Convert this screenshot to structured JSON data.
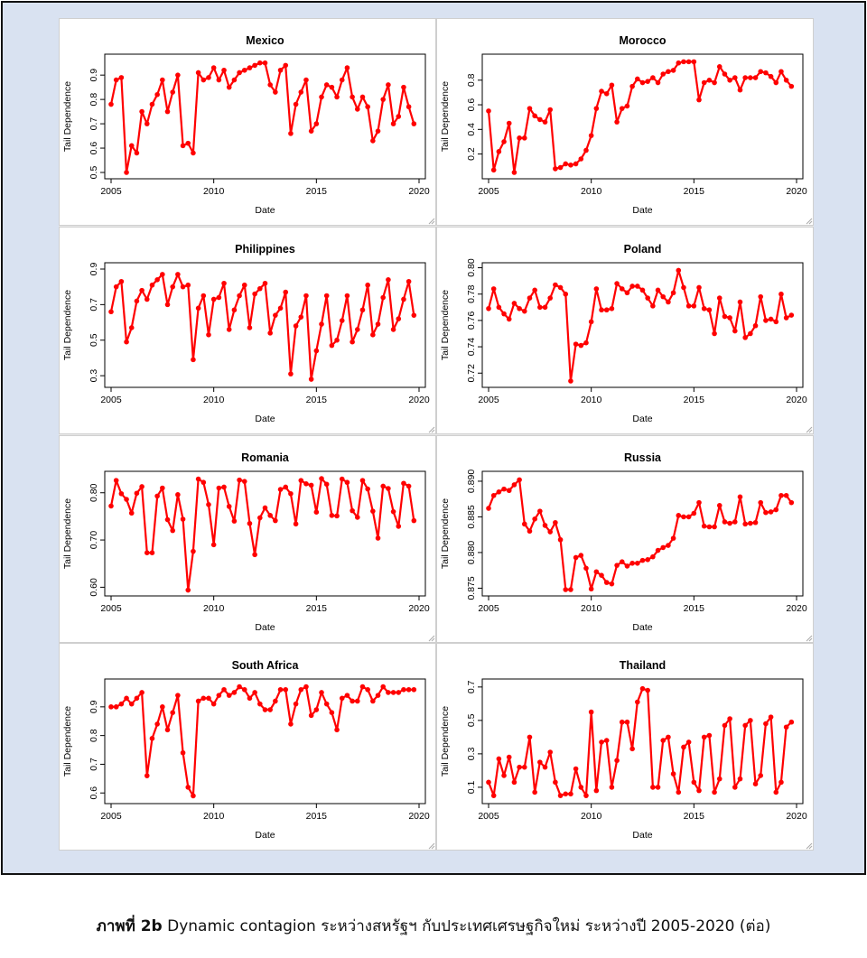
{
  "caption": {
    "label": "ภาพที่ 2b",
    "text": "Dynamic contagion ระหว่างสหรัฐฯ กับประเทศเศรษฐกิจใหม่ ระหว่างปี 2005-2020 (ต่อ)"
  },
  "colors": {
    "series": "#ff0000",
    "axis": "#000000",
    "background": "#d9e2f1"
  },
  "chart_data": [
    {
      "type": "line",
      "title": "Mexico",
      "xlabel": "Date",
      "ylabel": "Tail Dependence",
      "xlim": [
        2005,
        2020
      ],
      "ylim": [
        0.5,
        0.96
      ],
      "xticks": [
        "2005",
        "2010",
        "2015",
        "2020"
      ],
      "yticks": [
        "0.5",
        "0.6",
        "0.7",
        "0.8",
        "0.9"
      ],
      "x": [
        2005.0,
        2005.25,
        2005.5,
        2005.75,
        2006.0,
        2006.25,
        2006.5,
        2006.75,
        2007.0,
        2007.25,
        2007.5,
        2007.75,
        2008.0,
        2008.25,
        2008.5,
        2008.75,
        2009.0,
        2009.25,
        2009.5,
        2009.75,
        2010.0,
        2010.25,
        2010.5,
        2010.75,
        2011.0,
        2011.25,
        2011.5,
        2011.75,
        2012.0,
        2012.25,
        2012.5,
        2012.75,
        2013.0,
        2013.25,
        2013.5,
        2013.75,
        2014.0,
        2014.25,
        2014.5,
        2014.75,
        2015.0,
        2015.25,
        2015.5,
        2015.75,
        2016.0,
        2016.25,
        2016.5,
        2016.75,
        2017.0,
        2017.25,
        2017.5,
        2017.75,
        2018.0,
        2018.25,
        2018.5,
        2018.75,
        2019.0,
        2019.25,
        2019.5,
        2019.75
      ],
      "y": [
        0.78,
        0.88,
        0.89,
        0.5,
        0.61,
        0.58,
        0.75,
        0.7,
        0.78,
        0.82,
        0.88,
        0.75,
        0.83,
        0.9,
        0.61,
        0.62,
        0.58,
        0.91,
        0.88,
        0.89,
        0.93,
        0.88,
        0.92,
        0.85,
        0.88,
        0.91,
        0.92,
        0.93,
        0.94,
        0.95,
        0.95,
        0.86,
        0.83,
        0.92,
        0.94,
        0.66,
        0.78,
        0.83,
        0.88,
        0.67,
        0.7,
        0.81,
        0.86,
        0.85,
        0.81,
        0.88,
        0.93,
        0.81,
        0.76,
        0.81,
        0.77,
        0.63,
        0.67,
        0.8,
        0.86,
        0.7,
        0.73,
        0.85,
        0.77,
        0.7
      ]
    },
    {
      "type": "line",
      "title": "Morocco",
      "xlabel": "Date",
      "ylabel": "Tail Dependence",
      "xlim": [
        2005,
        2020
      ],
      "ylim": [
        0.05,
        0.96
      ],
      "xticks": [
        "2005",
        "2010",
        "2015",
        "2020"
      ],
      "yticks": [
        "0.2",
        "0.4",
        "0.6",
        "0.8"
      ],
      "x": [
        2005.0,
        2005.25,
        2005.5,
        2005.75,
        2006.0,
        2006.25,
        2006.5,
        2006.75,
        2007.0,
        2007.25,
        2007.5,
        2007.75,
        2008.0,
        2008.25,
        2008.5,
        2008.75,
        2009.0,
        2009.25,
        2009.5,
        2009.75,
        2010.0,
        2010.25,
        2010.5,
        2010.75,
        2011.0,
        2011.25,
        2011.5,
        2011.75,
        2012.0,
        2012.25,
        2012.5,
        2012.75,
        2013.0,
        2013.25,
        2013.5,
        2013.75,
        2014.0,
        2014.25,
        2014.5,
        2014.75,
        2015.0,
        2015.25,
        2015.5,
        2015.75,
        2016.0,
        2016.25,
        2016.5,
        2016.75,
        2017.0,
        2017.25,
        2017.5,
        2017.75,
        2018.0,
        2018.25,
        2018.5,
        2018.75,
        2019.0,
        2019.25,
        2019.5,
        2019.75
      ],
      "y": [
        0.55,
        0.07,
        0.22,
        0.3,
        0.45,
        0.05,
        0.33,
        0.33,
        0.57,
        0.51,
        0.48,
        0.46,
        0.56,
        0.08,
        0.09,
        0.12,
        0.11,
        0.12,
        0.16,
        0.23,
        0.35,
        0.57,
        0.71,
        0.69,
        0.76,
        0.46,
        0.57,
        0.59,
        0.75,
        0.81,
        0.78,
        0.79,
        0.82,
        0.78,
        0.85,
        0.87,
        0.88,
        0.94,
        0.95,
        0.95,
        0.95,
        0.64,
        0.78,
        0.8,
        0.78,
        0.91,
        0.85,
        0.8,
        0.82,
        0.72,
        0.82,
        0.82,
        0.82,
        0.87,
        0.86,
        0.83,
        0.78,
        0.87,
        0.8,
        0.75
      ]
    },
    {
      "type": "line",
      "title": "Philippines",
      "xlabel": "Date",
      "ylabel": "Tail Dependence",
      "xlim": [
        2005,
        2020
      ],
      "ylim": [
        0.27,
        0.9
      ],
      "xticks": [
        "2005",
        "2010",
        "2015",
        "2020"
      ],
      "yticks": [
        "0.3",
        "0.5",
        "0.7",
        "0.9"
      ],
      "x": [
        2005.0,
        2005.25,
        2005.5,
        2005.75,
        2006.0,
        2006.25,
        2006.5,
        2006.75,
        2007.0,
        2007.25,
        2007.5,
        2007.75,
        2008.0,
        2008.25,
        2008.5,
        2008.75,
        2009.0,
        2009.25,
        2009.5,
        2009.75,
        2010.0,
        2010.25,
        2010.5,
        2010.75,
        2011.0,
        2011.25,
        2011.5,
        2011.75,
        2012.0,
        2012.25,
        2012.5,
        2012.75,
        2013.0,
        2013.25,
        2013.5,
        2013.75,
        2014.0,
        2014.25,
        2014.5,
        2014.75,
        2015.0,
        2015.25,
        2015.5,
        2015.75,
        2016.0,
        2016.25,
        2016.5,
        2016.75,
        2017.0,
        2017.25,
        2017.5,
        2017.75,
        2018.0,
        2018.25,
        2018.5,
        2018.75,
        2019.0,
        2019.25,
        2019.5,
        2019.75
      ],
      "y": [
        0.66,
        0.8,
        0.83,
        0.49,
        0.57,
        0.72,
        0.78,
        0.73,
        0.81,
        0.84,
        0.87,
        0.7,
        0.8,
        0.87,
        0.8,
        0.81,
        0.39,
        0.68,
        0.75,
        0.53,
        0.73,
        0.74,
        0.82,
        0.56,
        0.67,
        0.75,
        0.81,
        0.57,
        0.76,
        0.79,
        0.82,
        0.54,
        0.64,
        0.68,
        0.77,
        0.31,
        0.58,
        0.63,
        0.75,
        0.28,
        0.44,
        0.59,
        0.75,
        0.47,
        0.5,
        0.61,
        0.75,
        0.49,
        0.56,
        0.67,
        0.81,
        0.53,
        0.59,
        0.74,
        0.84,
        0.56,
        0.62,
        0.73,
        0.83,
        0.64
      ]
    },
    {
      "type": "line",
      "title": "Poland",
      "xlabel": "Date",
      "ylabel": "Tail Dependence",
      "xlim": [
        2005,
        2020
      ],
      "ylim": [
        0.714,
        0.799
      ],
      "xticks": [
        "2005",
        "2010",
        "2015",
        "2020"
      ],
      "yticks": [
        "0.72",
        "0.74",
        "0.76",
        "0.78",
        "0.80"
      ],
      "x": [
        2005.0,
        2005.25,
        2005.5,
        2005.75,
        2006.0,
        2006.25,
        2006.5,
        2006.75,
        2007.0,
        2007.25,
        2007.5,
        2007.75,
        2008.0,
        2008.25,
        2008.5,
        2008.75,
        2009.0,
        2009.25,
        2009.5,
        2009.75,
        2010.0,
        2010.25,
        2010.5,
        2010.75,
        2011.0,
        2011.25,
        2011.5,
        2011.75,
        2012.0,
        2012.25,
        2012.5,
        2012.75,
        2013.0,
        2013.25,
        2013.5,
        2013.75,
        2014.0,
        2014.25,
        2014.5,
        2014.75,
        2015.0,
        2015.25,
        2015.5,
        2015.75,
        2016.0,
        2016.25,
        2016.5,
        2016.75,
        2017.0,
        2017.25,
        2017.5,
        2017.75,
        2018.0,
        2018.25,
        2018.5,
        2018.75,
        2019.0,
        2019.25,
        2019.5,
        2019.75
      ],
      "y": [
        0.769,
        0.784,
        0.77,
        0.765,
        0.761,
        0.773,
        0.769,
        0.767,
        0.777,
        0.783,
        0.77,
        0.77,
        0.777,
        0.787,
        0.785,
        0.78,
        0.714,
        0.742,
        0.741,
        0.743,
        0.759,
        0.784,
        0.768,
        0.768,
        0.769,
        0.788,
        0.784,
        0.781,
        0.786,
        0.786,
        0.783,
        0.777,
        0.771,
        0.783,
        0.778,
        0.774,
        0.781,
        0.798,
        0.785,
        0.771,
        0.771,
        0.785,
        0.769,
        0.768,
        0.75,
        0.777,
        0.763,
        0.762,
        0.752,
        0.774,
        0.747,
        0.75,
        0.756,
        0.778,
        0.76,
        0.761,
        0.759,
        0.78,
        0.762,
        0.764
      ]
    },
    {
      "type": "line",
      "title": "Romania",
      "xlabel": "Date",
      "ylabel": "Tail Dependence",
      "xlim": [
        2005,
        2020
      ],
      "ylim": [
        0.595,
        0.832
      ],
      "xticks": [
        "2005",
        "2010",
        "2015",
        "2020"
      ],
      "yticks": [
        "0.60",
        "0.70",
        "0.80"
      ],
      "x": [
        2005.0,
        2005.25,
        2005.5,
        2005.75,
        2006.0,
        2006.25,
        2006.5,
        2006.75,
        2007.0,
        2007.25,
        2007.5,
        2007.75,
        2008.0,
        2008.25,
        2008.5,
        2008.75,
        2009.0,
        2009.25,
        2009.5,
        2009.75,
        2010.0,
        2010.25,
        2010.5,
        2010.75,
        2011.0,
        2011.25,
        2011.5,
        2011.75,
        2012.0,
        2012.25,
        2012.5,
        2012.75,
        2013.0,
        2013.25,
        2013.5,
        2013.75,
        2014.0,
        2014.25,
        2014.5,
        2014.75,
        2015.0,
        2015.25,
        2015.5,
        2015.75,
        2016.0,
        2016.25,
        2016.5,
        2016.75,
        2017.0,
        2017.25,
        2017.5,
        2017.75,
        2018.0,
        2018.25,
        2018.5,
        2018.75,
        2019.0,
        2019.25,
        2019.5,
        2019.75
      ],
      "y": [
        0.772,
        0.826,
        0.798,
        0.786,
        0.757,
        0.799,
        0.813,
        0.673,
        0.673,
        0.793,
        0.81,
        0.743,
        0.72,
        0.796,
        0.744,
        0.594,
        0.676,
        0.829,
        0.822,
        0.775,
        0.69,
        0.81,
        0.812,
        0.771,
        0.74,
        0.827,
        0.824,
        0.735,
        0.669,
        0.747,
        0.768,
        0.752,
        0.741,
        0.807,
        0.812,
        0.798,
        0.734,
        0.826,
        0.819,
        0.816,
        0.759,
        0.83,
        0.818,
        0.752,
        0.751,
        0.829,
        0.822,
        0.762,
        0.748,
        0.826,
        0.808,
        0.761,
        0.704,
        0.814,
        0.809,
        0.76,
        0.729,
        0.82,
        0.814,
        0.741
      ]
    },
    {
      "type": "line",
      "title": "Russia",
      "xlabel": "Date",
      "ylabel": "Tail Dependence",
      "xlim": [
        2005,
        2020
      ],
      "ylim": [
        0.8748,
        0.8905
      ],
      "xticks": [
        "2005",
        "2010",
        "2015",
        "2020"
      ],
      "yticks": [
        "0.875",
        "0.880",
        "0.885",
        "0.890"
      ],
      "x": [
        2005.0,
        2005.25,
        2005.5,
        2005.75,
        2006.0,
        2006.25,
        2006.5,
        2006.75,
        2007.0,
        2007.25,
        2007.5,
        2007.75,
        2008.0,
        2008.25,
        2008.5,
        2008.75,
        2009.0,
        2009.25,
        2009.5,
        2009.75,
        2010.0,
        2010.25,
        2010.5,
        2010.75,
        2011.0,
        2011.25,
        2011.5,
        2011.75,
        2012.0,
        2012.25,
        2012.5,
        2012.75,
        2013.0,
        2013.25,
        2013.5,
        2013.75,
        2014.0,
        2014.25,
        2014.5,
        2014.75,
        2015.0,
        2015.25,
        2015.5,
        2015.75,
        2016.0,
        2016.25,
        2016.5,
        2016.75,
        2017.0,
        2017.25,
        2017.5,
        2017.75,
        2018.0,
        2018.25,
        2018.5,
        2018.75,
        2019.0,
        2019.25,
        2019.5,
        2019.75
      ],
      "y": [
        0.8862,
        0.888,
        0.8885,
        0.8889,
        0.8887,
        0.8895,
        0.8902,
        0.884,
        0.883,
        0.8847,
        0.8858,
        0.8838,
        0.8829,
        0.8842,
        0.8818,
        0.8748,
        0.8748,
        0.8793,
        0.8796,
        0.8778,
        0.8749,
        0.8773,
        0.8768,
        0.8758,
        0.8756,
        0.8782,
        0.8787,
        0.8781,
        0.8785,
        0.8785,
        0.8789,
        0.879,
        0.8794,
        0.8803,
        0.8807,
        0.881,
        0.882,
        0.8852,
        0.885,
        0.885,
        0.8855,
        0.887,
        0.8837,
        0.8836,
        0.8836,
        0.8866,
        0.8843,
        0.8841,
        0.8843,
        0.8878,
        0.884,
        0.8841,
        0.8842,
        0.887,
        0.8856,
        0.8857,
        0.886,
        0.888,
        0.888,
        0.887
      ]
    },
    {
      "type": "line",
      "title": "South Africa",
      "xlabel": "Date",
      "ylabel": "Tail Dependence",
      "xlim": [
        2005,
        2020
      ],
      "ylim": [
        0.585,
        0.975
      ],
      "xticks": [
        "2005",
        "2010",
        "2015",
        "2020"
      ],
      "yticks": [
        "0.6",
        "0.7",
        "0.8",
        "0.9"
      ],
      "x": [
        2005.0,
        2005.25,
        2005.5,
        2005.75,
        2006.0,
        2006.25,
        2006.5,
        2006.75,
        2007.0,
        2007.25,
        2007.5,
        2007.75,
        2008.0,
        2008.25,
        2008.5,
        2008.75,
        2009.0,
        2009.25,
        2009.5,
        2009.75,
        2010.0,
        2010.25,
        2010.5,
        2010.75,
        2011.0,
        2011.25,
        2011.5,
        2011.75,
        2012.0,
        2012.25,
        2012.5,
        2012.75,
        2013.0,
        2013.25,
        2013.5,
        2013.75,
        2014.0,
        2014.25,
        2014.5,
        2014.75,
        2015.0,
        2015.25,
        2015.5,
        2015.75,
        2016.0,
        2016.25,
        2016.5,
        2016.75,
        2017.0,
        2017.25,
        2017.5,
        2017.75,
        2018.0,
        2018.25,
        2018.5,
        2018.75,
        2019.0,
        2019.25,
        2019.5,
        2019.75
      ],
      "y": [
        0.9,
        0.9,
        0.91,
        0.93,
        0.91,
        0.93,
        0.95,
        0.66,
        0.79,
        0.84,
        0.9,
        0.82,
        0.88,
        0.94,
        0.74,
        0.62,
        0.59,
        0.92,
        0.93,
        0.93,
        0.91,
        0.94,
        0.96,
        0.94,
        0.95,
        0.97,
        0.96,
        0.93,
        0.95,
        0.91,
        0.89,
        0.89,
        0.92,
        0.96,
        0.96,
        0.84,
        0.91,
        0.96,
        0.97,
        0.87,
        0.89,
        0.95,
        0.91,
        0.88,
        0.82,
        0.93,
        0.94,
        0.92,
        0.92,
        0.97,
        0.96,
        0.92,
        0.94,
        0.97,
        0.95,
        0.95,
        0.95,
        0.96,
        0.96,
        0.96
      ]
    },
    {
      "type": "line",
      "title": "Thailand",
      "xlabel": "Date",
      "ylabel": "Tail Dependence",
      "xlim": [
        2005,
        2020
      ],
      "ylim": [
        0.04,
        0.71
      ],
      "xticks": [
        "2005",
        "2010",
        "2015",
        "2020"
      ],
      "yticks": [
        "0.1",
        "0.3",
        "0.5",
        "0.7"
      ],
      "x": [
        2005.0,
        2005.25,
        2005.5,
        2005.75,
        2006.0,
        2006.25,
        2006.5,
        2006.75,
        2007.0,
        2007.25,
        2007.5,
        2007.75,
        2008.0,
        2008.25,
        2008.5,
        2008.75,
        2009.0,
        2009.25,
        2009.5,
        2009.75,
        2010.0,
        2010.25,
        2010.5,
        2010.75,
        2011.0,
        2011.25,
        2011.5,
        2011.75,
        2012.0,
        2012.25,
        2012.5,
        2012.75,
        2013.0,
        2013.25,
        2013.5,
        2013.75,
        2014.0,
        2014.25,
        2014.5,
        2014.75,
        2015.0,
        2015.25,
        2015.5,
        2015.75,
        2016.0,
        2016.25,
        2016.5,
        2016.75,
        2017.0,
        2017.25,
        2017.5,
        2017.75,
        2018.0,
        2018.25,
        2018.5,
        2018.75,
        2019.0,
        2019.25,
        2019.5,
        2019.75
      ],
      "y": [
        0.13,
        0.05,
        0.27,
        0.17,
        0.28,
        0.13,
        0.22,
        0.22,
        0.4,
        0.07,
        0.25,
        0.22,
        0.31,
        0.13,
        0.05,
        0.06,
        0.06,
        0.21,
        0.1,
        0.05,
        0.55,
        0.08,
        0.37,
        0.38,
        0.1,
        0.26,
        0.49,
        0.49,
        0.33,
        0.61,
        0.69,
        0.68,
        0.1,
        0.1,
        0.38,
        0.4,
        0.18,
        0.07,
        0.34,
        0.37,
        0.13,
        0.08,
        0.4,
        0.41,
        0.07,
        0.15,
        0.47,
        0.51,
        0.1,
        0.15,
        0.47,
        0.5,
        0.12,
        0.17,
        0.48,
        0.52,
        0.07,
        0.13,
        0.46,
        0.49
      ]
    }
  ]
}
